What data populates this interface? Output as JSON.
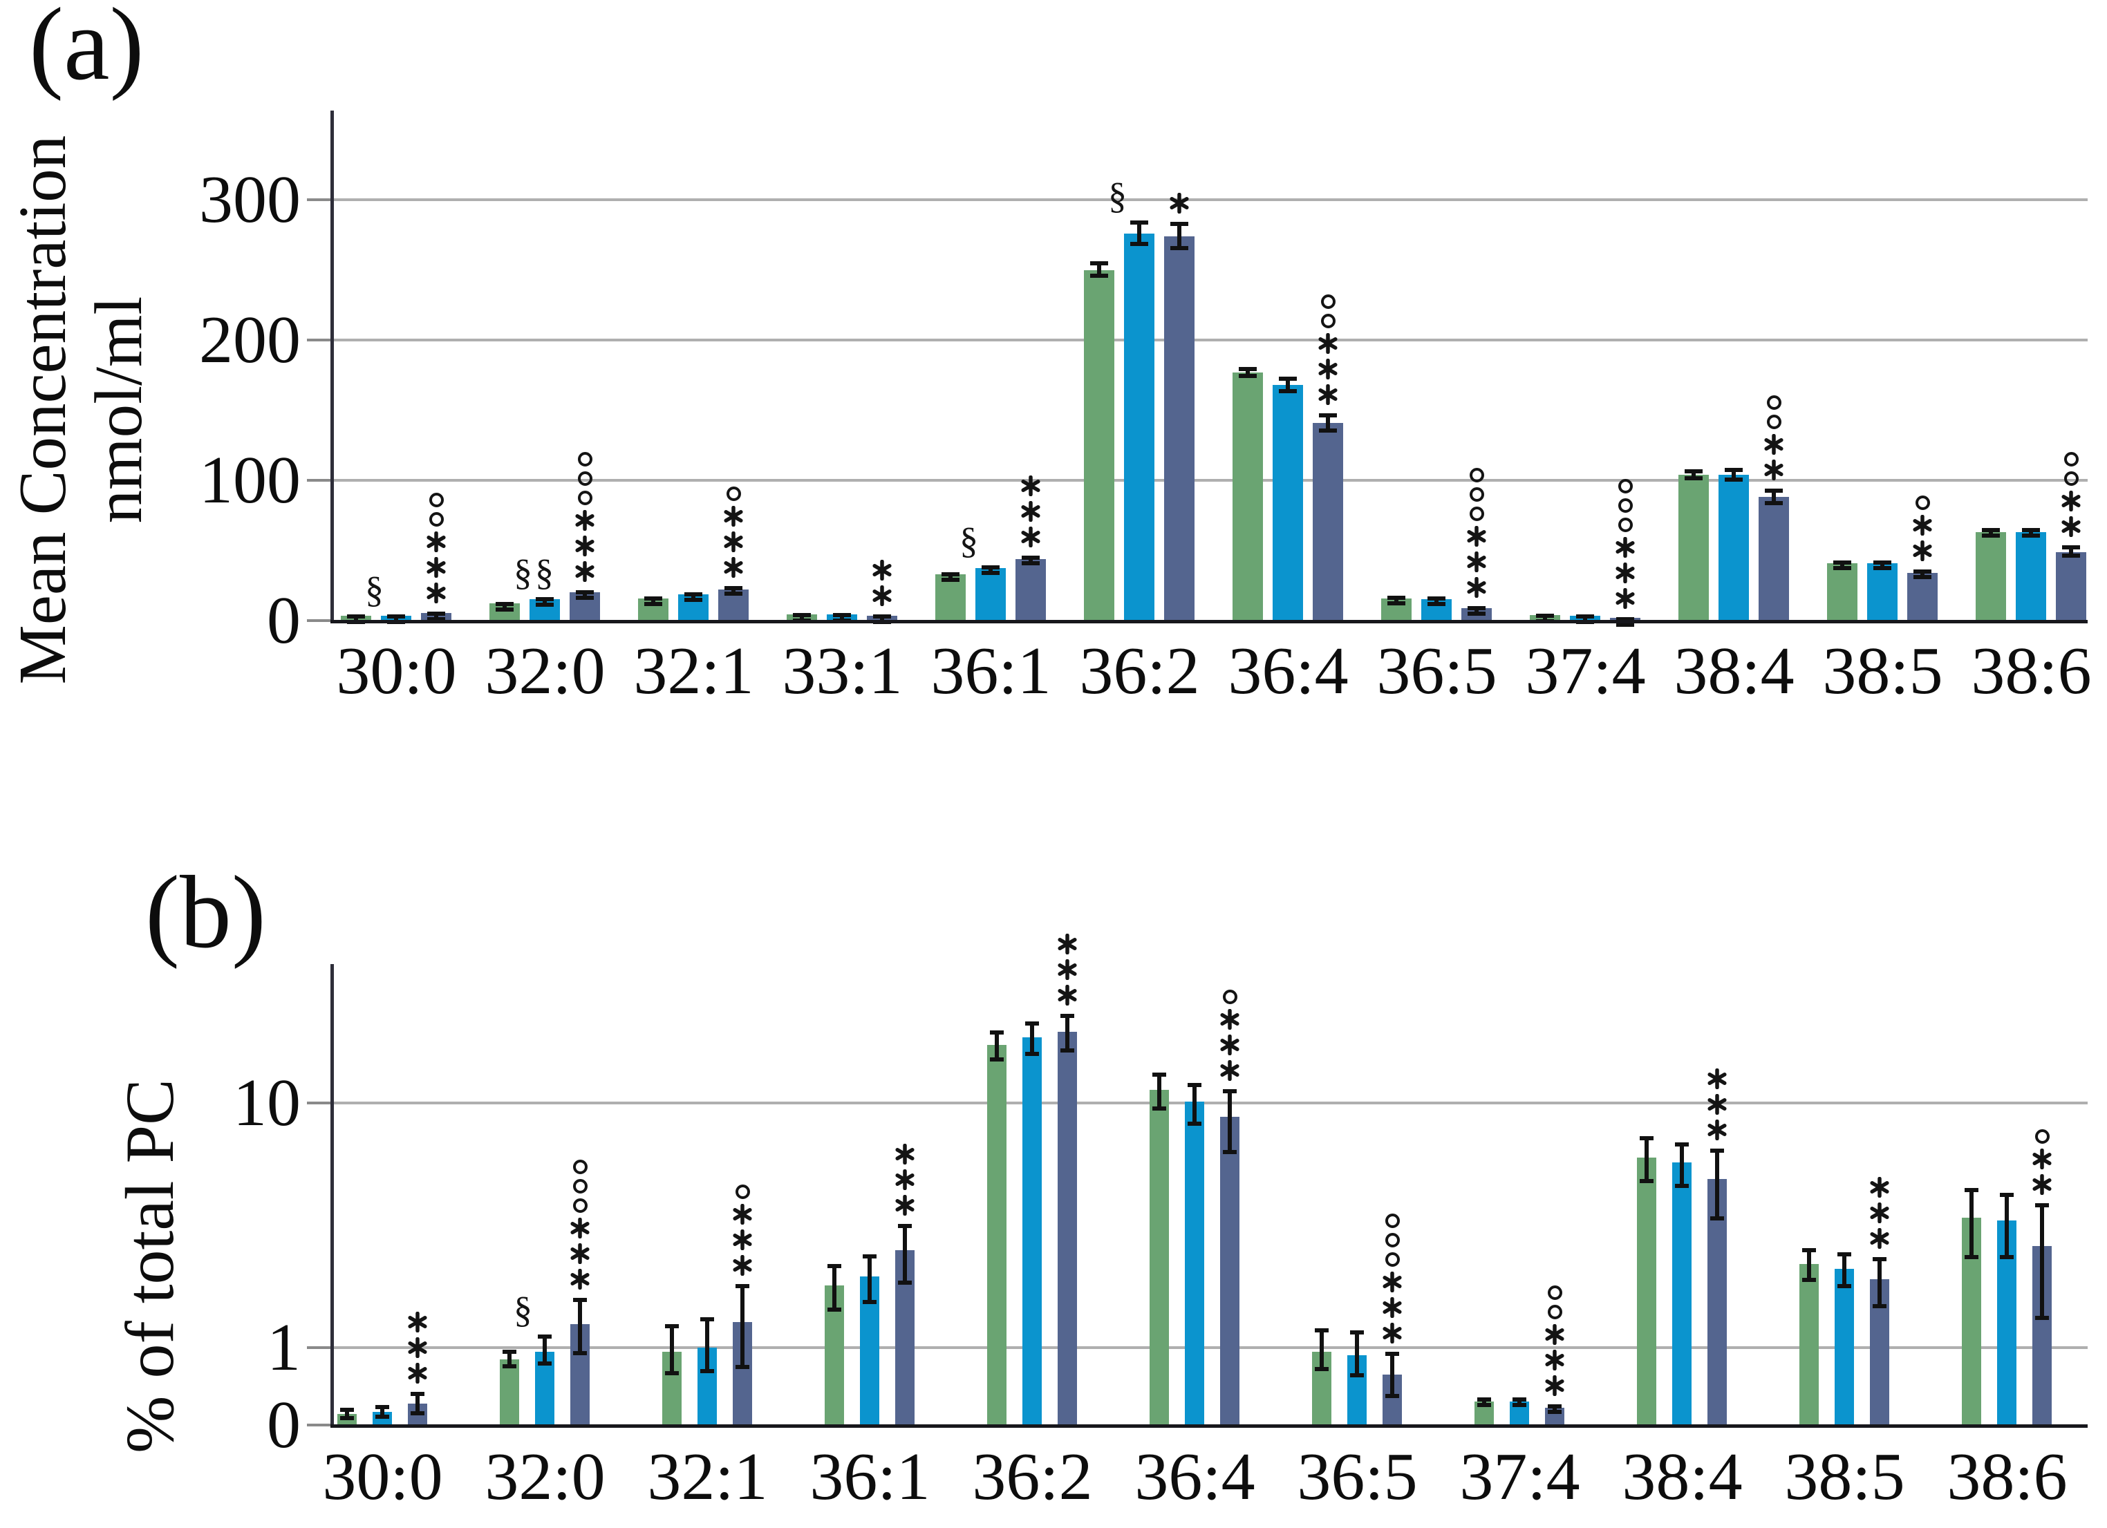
{
  "figure": {
    "background": "#ffffff"
  },
  "chart_data": [
    {
      "panel": "(a)",
      "type": "bar",
      "ylabel": "Mean Concentration nmol/ml",
      "ylabel_lines": [
        "Mean Concentration",
        "nmol/ml"
      ],
      "axis": {
        "scale": "linear",
        "ylim": [
          0,
          330
        ],
        "grid": true,
        "legend": "none",
        "ticks": [
          {
            "label": "0",
            "value": 0
          },
          {
            "label": "100",
            "value": 100
          },
          {
            "label": "200",
            "value": 200
          },
          {
            "label": "300",
            "value": 300
          }
        ]
      },
      "categories": [
        "30:0",
        "32:0",
        "32:1",
        "33:1",
        "36:1",
        "36:2",
        "36:4",
        "36:5",
        "37:4",
        "38:4",
        "38:5",
        "38:6"
      ],
      "series": [
        {
          "name": "green",
          "color": "#6AA472",
          "values": [
            3.4,
            12.5,
            16,
            4.5,
            33,
            250,
            177,
            16,
            4,
            104,
            41,
            63
          ],
          "errors": [
            0.8,
            1,
            1.2,
            0.8,
            1.5,
            6,
            4,
            1.5,
            0.8,
            4,
            2,
            3
          ]
        },
        {
          "name": "light-blue",
          "color": "#0B94CE",
          "values": [
            3.6,
            15.5,
            18.5,
            4.5,
            37.5,
            276,
            168,
            15.5,
            3.5,
            104,
            41,
            63
          ],
          "errors": [
            0.8,
            1.2,
            1.5,
            0.8,
            2,
            9,
            6,
            1.5,
            0.8,
            5,
            2,
            3
          ]
        },
        {
          "name": "dark-blue",
          "color": "#54658F",
          "values": [
            5.5,
            20,
            22,
            3.5,
            44,
            274,
            141,
            9,
            2,
            88,
            34,
            49
          ],
          "errors": [
            1,
            1.5,
            2.5,
            0.8,
            2.5,
            10,
            7,
            1.5,
            0.6,
            6,
            2.5,
            4.5
          ]
        }
      ],
      "significance": [
        {
          "category": "30:0",
          "series": "light-blue",
          "symbols": "§"
        },
        {
          "category": "30:0",
          "series": "dark-blue",
          "symbols": "°°***"
        },
        {
          "category": "32:0",
          "series": "light-blue",
          "symbols": "§§"
        },
        {
          "category": "32:0",
          "series": "dark-blue",
          "symbols": "°°°***"
        },
        {
          "category": "32:1",
          "series": "dark-blue",
          "symbols": "°***"
        },
        {
          "category": "33:1",
          "series": "dark-blue",
          "symbols": "**"
        },
        {
          "category": "36:1",
          "series": "light-blue",
          "symbols": "§"
        },
        {
          "category": "36:1",
          "series": "dark-blue",
          "symbols": "***"
        },
        {
          "category": "36:2",
          "series": "light-blue",
          "symbols": "§"
        },
        {
          "category": "36:2",
          "series": "dark-blue",
          "symbols": "*"
        },
        {
          "category": "36:4",
          "series": "dark-blue",
          "symbols": "°°***"
        },
        {
          "category": "36:5",
          "series": "dark-blue",
          "symbols": "°°°***"
        },
        {
          "category": "37:4",
          "series": "dark-blue",
          "symbols": "°°°***"
        },
        {
          "category": "38:4",
          "series": "dark-blue",
          "symbols": "°°**"
        },
        {
          "category": "38:5",
          "series": "dark-blue",
          "symbols": "°**"
        },
        {
          "category": "38:6",
          "series": "dark-blue",
          "symbols": "°°**"
        }
      ]
    },
    {
      "panel": "(b)",
      "type": "bar",
      "ylabel": "% of total PC",
      "ylabel_lines": [
        "% of total PC"
      ],
      "axis": {
        "scale": "linear-below-1-log-above-1",
        "ylim": [
          0,
          30
        ],
        "grid": true,
        "legend": "none",
        "ticks": [
          {
            "label": "0",
            "value": 0
          },
          {
            "label": "1",
            "value": 1
          },
          {
            "label": "10",
            "value": 10
          }
        ]
      },
      "categories": [
        "30:0",
        "32:0",
        "32:1",
        "36:1",
        "36:2",
        "36:4",
        "36:5",
        "37:4",
        "38:4",
        "38:5",
        "38:6"
      ],
      "series": [
        {
          "name": "green",
          "color": "#6AA472",
          "values": [
            0.14,
            0.85,
            0.95,
            1.8,
            17.3,
            11.3,
            0.95,
            0.3,
            6.0,
            2.2,
            3.4
          ],
          "errors": [
            0.08,
            0.12,
            0.3,
            0.4,
            2.5,
            2.0,
            0.25,
            0.06,
            1.3,
            0.35,
            1.1
          ]
        },
        {
          "name": "light-blue",
          "color": "#0B94CE",
          "values": [
            0.17,
            0.95,
            1.0,
            1.95,
            18.6,
            10.1,
            0.9,
            0.3,
            5.7,
            2.1,
            3.3
          ],
          "errors": [
            0.09,
            0.18,
            0.33,
            0.45,
            3.0,
            2.0,
            0.28,
            0.06,
            1.2,
            0.35,
            1.0
          ]
        },
        {
          "name": "dark-blue",
          "color": "#54658F",
          "values": [
            0.28,
            1.25,
            1.27,
            2.5,
            19.6,
            8.8,
            0.65,
            0.22,
            4.9,
            1.9,
            2.6
          ],
          "errors": [
            0.15,
            0.35,
            0.55,
            0.7,
            3.5,
            2.6,
            0.3,
            0.05,
            1.6,
            0.45,
            1.3
          ]
        }
      ],
      "significance": [
        {
          "category": "30:0",
          "series": "dark-blue",
          "symbols": "***"
        },
        {
          "category": "32:0",
          "series": "light-blue",
          "symbols": "§"
        },
        {
          "category": "32:0",
          "series": "dark-blue",
          "symbols": "°°°***"
        },
        {
          "category": "32:1",
          "series": "dark-blue",
          "symbols": "°***"
        },
        {
          "category": "36:1",
          "series": "dark-blue",
          "symbols": "***"
        },
        {
          "category": "36:2",
          "series": "dark-blue",
          "symbols": "***"
        },
        {
          "category": "36:4",
          "series": "dark-blue",
          "symbols": "°***"
        },
        {
          "category": "36:5",
          "series": "dark-blue",
          "symbols": "°°°***"
        },
        {
          "category": "37:4",
          "series": "dark-blue",
          "symbols": "°°***"
        },
        {
          "category": "38:4",
          "series": "dark-blue",
          "symbols": "***"
        },
        {
          "category": "38:5",
          "series": "dark-blue",
          "symbols": "***"
        },
        {
          "category": "38:6",
          "series": "dark-blue",
          "symbols": "°**"
        }
      ]
    }
  ]
}
